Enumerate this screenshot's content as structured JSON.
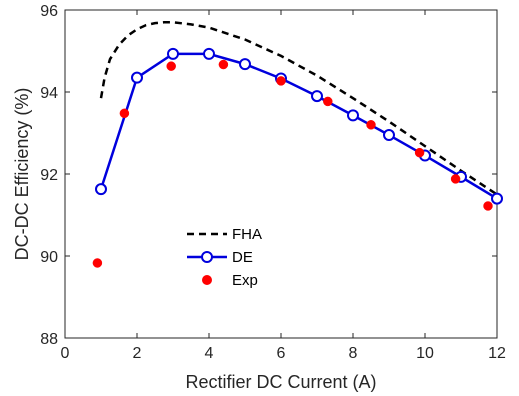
{
  "chart_data": {
    "type": "line",
    "xlabel": "Rectifier DC Current (A)",
    "ylabel": "DC-DC Efficiency (%)",
    "xlim": [
      0,
      12
    ],
    "ylim": [
      88,
      96
    ],
    "xticks": [
      0,
      2,
      4,
      6,
      8,
      10,
      12
    ],
    "yticks": [
      88,
      90,
      92,
      94,
      96
    ],
    "xtick_labels": [
      "0",
      "2",
      "4",
      "6",
      "8",
      "10",
      "12"
    ],
    "ytick_labels": [
      "88",
      "90",
      "92",
      "94",
      "96"
    ],
    "grid": false,
    "legend_position": "lower-left-center",
    "series": [
      {
        "name": "FHA",
        "style": "dashed-line",
        "color": "#000000",
        "x": [
          1.0,
          1.1,
          1.25,
          1.5,
          1.75,
          2.0,
          2.25,
          2.5,
          2.75,
          3.0,
          3.5,
          4.0,
          5.0,
          6.0,
          7.0,
          8.0,
          9.0,
          10.0,
          11.0,
          12.0
        ],
        "y": [
          93.85,
          94.35,
          94.8,
          95.15,
          95.38,
          95.53,
          95.63,
          95.68,
          95.7,
          95.7,
          95.65,
          95.57,
          95.28,
          94.88,
          94.4,
          93.85,
          93.28,
          92.68,
          92.08,
          91.5
        ]
      },
      {
        "name": "DE",
        "style": "line-circles",
        "color": "#0000dd",
        "x": [
          1,
          2,
          3,
          4,
          5,
          6,
          7,
          8,
          9,
          10,
          11,
          12
        ],
        "y": [
          91.63,
          94.35,
          94.93,
          94.93,
          94.68,
          94.33,
          93.9,
          93.43,
          92.95,
          92.45,
          91.93,
          91.4
        ]
      },
      {
        "name": "Exp",
        "style": "markers",
        "color": "#ff0000",
        "x": [
          0.9,
          1.65,
          2.95,
          4.4,
          6.0,
          7.3,
          8.5,
          9.85,
          10.85,
          11.75
        ],
        "y": [
          89.83,
          93.48,
          94.63,
          94.67,
          94.27,
          93.77,
          93.2,
          92.52,
          91.88,
          91.22
        ]
      }
    ]
  }
}
